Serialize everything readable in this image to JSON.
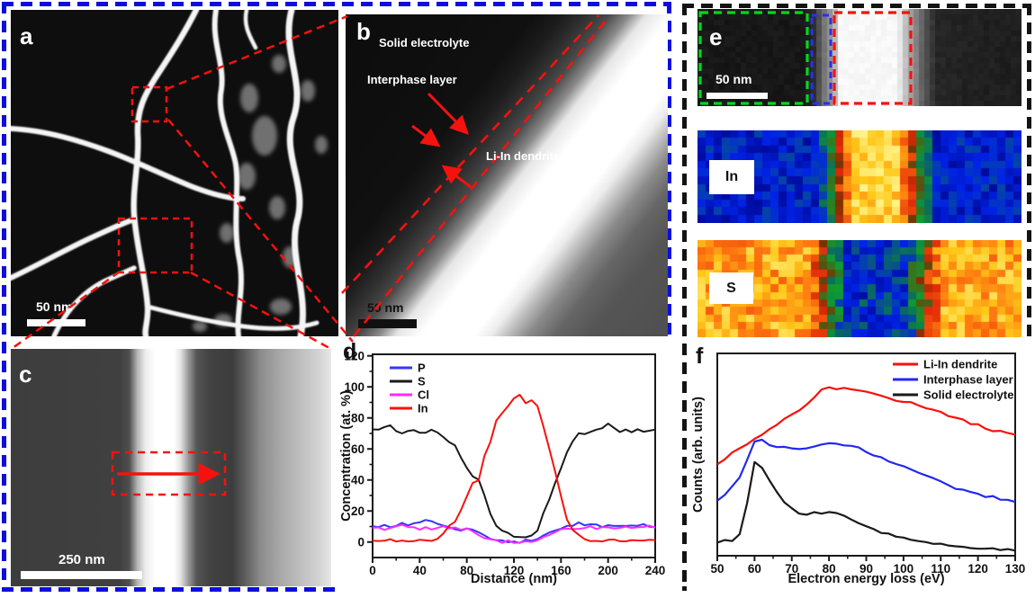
{
  "colors": {
    "left_border": "#0d0ddf",
    "right_border": "#131313",
    "annotation_red": "#f5120e",
    "box_green": "#00d81c",
    "box_blue": "#2431f0",
    "box_red": "#f5120e"
  },
  "panels": {
    "a": {
      "label": "a",
      "scale_bar": "50 nm"
    },
    "b": {
      "label": "b",
      "scale_bar": "50 nm",
      "annotations": {
        "solid_electrolyte": "Solid electrolyte",
        "interphase_layer": "Interphase layer",
        "li_in_dendrite": "Li-In dendrite"
      }
    },
    "c": {
      "label": "c",
      "scale_bar": "250 nm"
    },
    "d": {
      "label": "d"
    },
    "e": {
      "label": "e",
      "scale_bar": "50 nm",
      "map_labels": [
        "In",
        "S"
      ]
    },
    "f": {
      "label": "f"
    }
  },
  "chart_data": [
    {
      "type": "line",
      "panel": "d",
      "xlabel": "Distance (nm)",
      "ylabel": "Concentration (at. %)",
      "xlim": [
        0,
        240
      ],
      "ylim": [
        -10,
        121
      ],
      "x_major_ticks": [
        0,
        40,
        80,
        120,
        160,
        200,
        240
      ],
      "x_minor_step": 20,
      "y_major_ticks": [
        0,
        20,
        40,
        60,
        80,
        100,
        120
      ],
      "y_minor_step": 10,
      "x_step": 5,
      "jitter": 0.7,
      "legend_position": "top-left",
      "grid": false,
      "series": [
        {
          "name": "P",
          "color": "#3535ff",
          "values": [
            10,
            10,
            11,
            10,
            11,
            12,
            11,
            12,
            13,
            14,
            13,
            12,
            11,
            10,
            8,
            7,
            9,
            8,
            6,
            4,
            2,
            1,
            1,
            0,
            1,
            0,
            1,
            1,
            2,
            4,
            6,
            8,
            9,
            10,
            11,
            12,
            11,
            12,
            11,
            10,
            11,
            10,
            11,
            10,
            11,
            10,
            11,
            10,
            10
          ]
        },
        {
          "name": "S",
          "color": "#1a1a1a",
          "values": [
            73,
            72,
            74,
            75,
            72,
            70,
            71,
            72,
            70,
            71,
            72,
            70,
            68,
            65,
            62,
            55,
            48,
            42,
            40,
            30,
            18,
            10,
            7,
            6,
            4,
            3,
            3,
            4,
            8,
            18,
            28,
            38,
            48,
            58,
            65,
            70,
            70,
            71,
            72,
            74,
            76,
            73,
            71,
            72,
            71,
            73,
            71,
            72,
            73
          ]
        },
        {
          "name": "Cl",
          "color": "#ff2cff",
          "values": [
            9,
            9,
            8,
            9,
            10,
            11,
            10,
            9,
            8,
            9,
            8,
            9,
            10,
            9,
            9,
            8,
            9,
            7,
            5,
            3,
            2,
            1,
            0,
            1,
            0,
            0,
            1,
            0,
            1,
            3,
            5,
            7,
            8,
            8,
            9,
            8,
            9,
            10,
            9,
            9,
            10,
            9,
            9,
            10,
            9,
            10,
            9,
            10,
            9
          ]
        },
        {
          "name": "In",
          "color": "#f8100c",
          "values": [
            1,
            1,
            1,
            2,
            1,
            1,
            1,
            1,
            2,
            1,
            1,
            2,
            5,
            10,
            13,
            20,
            30,
            38,
            40,
            55,
            65,
            78,
            83,
            88,
            93,
            95,
            90,
            92,
            88,
            75,
            60,
            45,
            30,
            15,
            8,
            4,
            2,
            1,
            1,
            1,
            1,
            1,
            1,
            1,
            1,
            1,
            1,
            1,
            1
          ]
        }
      ]
    },
    {
      "type": "line",
      "panel": "f",
      "xlabel": "Electron energy loss (eV)",
      "ylabel": "Counts (arb. units)",
      "xlim": [
        50,
        130
      ],
      "ylim": [
        0,
        100
      ],
      "x_major_ticks": [
        50,
        60,
        70,
        80,
        90,
        100,
        110,
        120,
        130
      ],
      "x_minor_step": 5,
      "y_major_ticks": null,
      "y_minor_step": null,
      "x_step": 2,
      "jitter": 0.55,
      "legend_position": "top-right",
      "grid": false,
      "series": [
        {
          "name": "Li-In dendrite",
          "color": "#f8100c",
          "values": [
            45,
            48,
            51,
            53.5,
            55.5,
            57.5,
            60,
            62.5,
            65,
            67.5,
            69.5,
            72,
            75,
            78.5,
            82,
            83,
            82.5,
            83,
            82,
            81.5,
            81,
            80,
            79,
            78,
            77,
            76.5,
            75.5,
            74.5,
            73,
            72,
            71,
            69.5,
            68.5,
            67,
            65.5,
            64.5,
            63,
            62,
            61.5,
            61,
            60
          ]
        },
        {
          "name": "Interphase layer",
          "color": "#2228f0",
          "values": [
            27,
            30.5,
            34,
            39,
            47,
            56,
            57.5,
            55,
            54,
            53.5,
            53,
            52.5,
            53.5,
            54,
            54.5,
            55.5,
            55,
            55,
            54,
            53,
            51.5,
            50,
            48.5,
            47,
            45.5,
            44,
            42.5,
            41,
            39.5,
            38,
            36.5,
            35,
            33.5,
            32.5,
            31.5,
            30.5,
            29.5,
            29,
            28.2,
            27.6,
            27
          ]
        },
        {
          "name": "Solid electrolyte",
          "color": "#1a1a1a",
          "values": [
            6.7,
            7.8,
            7.2,
            11,
            26,
            46,
            44,
            37,
            31,
            26.5,
            23,
            21,
            20.5,
            21.5,
            21,
            22,
            21,
            19.5,
            18,
            16,
            14.5,
            13,
            11.5,
            10.5,
            9.5,
            8.5,
            7.8,
            7.2,
            6.6,
            6.1,
            5.6,
            5.2,
            4.8,
            4.5,
            4.2,
            3.9,
            3.7,
            3.5,
            3.3,
            3.2,
            3
          ]
        }
      ]
    }
  ],
  "heatmaps": {
    "palette_thermal": [
      [
        0,
        "#000078"
      ],
      [
        0.18,
        "#0022e8"
      ],
      [
        0.3,
        "#0a6a60"
      ],
      [
        0.4,
        "#0f9c30"
      ],
      [
        0.52,
        "#7a3000"
      ],
      [
        0.6,
        "#e02808"
      ],
      [
        0.72,
        "#ff7810"
      ],
      [
        0.85,
        "#ffc818"
      ],
      [
        1,
        "#ffffa8"
      ]
    ],
    "palette_gray": [
      [
        0,
        "#060606"
      ],
      [
        1,
        "#ffffff"
      ]
    ],
    "e_strip": {
      "palette": "gray",
      "cols": 60,
      "rows": 18,
      "noise": 0.02,
      "profile": [
        0.07,
        0.07,
        0.07,
        0.07,
        0.07,
        0.07,
        0.07,
        0.07,
        0.07,
        0.07,
        0.07,
        0.07,
        0.07,
        0.07,
        0.07,
        0.07,
        0.07,
        0.07,
        0.07,
        0.07,
        0.1,
        0.15,
        0.3,
        0.45,
        0.55,
        0.72,
        0.97,
        0.97,
        0.97,
        0.97,
        0.97,
        0.97,
        0.97,
        0.97,
        0.97,
        0.97,
        0.97,
        0.9,
        0.75,
        0.62,
        0.5,
        0.38,
        0.28,
        0.2,
        0.13,
        0.13,
        0.12,
        0.12,
        0.12,
        0.11,
        0.11,
        0.11,
        0.11,
        0.1,
        0.1,
        0.1,
        0.1,
        0.1,
        0.1,
        0.1
      ]
    },
    "in_map": {
      "palette": "thermal",
      "cols": 40,
      "rows": 12,
      "noise": 0.09,
      "profile": [
        0.15,
        0.15,
        0.15,
        0.15,
        0.15,
        0.15,
        0.15,
        0.15,
        0.15,
        0.15,
        0.15,
        0.15,
        0.15,
        0.15,
        0.15,
        0.28,
        0.4,
        0.58,
        0.72,
        0.88,
        0.88,
        0.88,
        0.88,
        0.88,
        0.88,
        0.72,
        0.58,
        0.4,
        0.28,
        0.15,
        0.15,
        0.15,
        0.15,
        0.15,
        0.15,
        0.15,
        0.15,
        0.15,
        0.15,
        0.15
      ]
    },
    "s_map": {
      "palette": "thermal",
      "cols": 40,
      "rows": 13,
      "noise": 0.12,
      "profile": [
        0.8,
        0.8,
        0.8,
        0.8,
        0.8,
        0.8,
        0.8,
        0.8,
        0.8,
        0.8,
        0.8,
        0.8,
        0.8,
        0.8,
        0.7,
        0.55,
        0.4,
        0.33,
        0.2,
        0.2,
        0.2,
        0.2,
        0.2,
        0.2,
        0.2,
        0.2,
        0.33,
        0.42,
        0.58,
        0.72,
        0.8,
        0.8,
        0.8,
        0.8,
        0.8,
        0.8,
        0.8,
        0.8,
        0.8,
        0.8
      ]
    }
  }
}
